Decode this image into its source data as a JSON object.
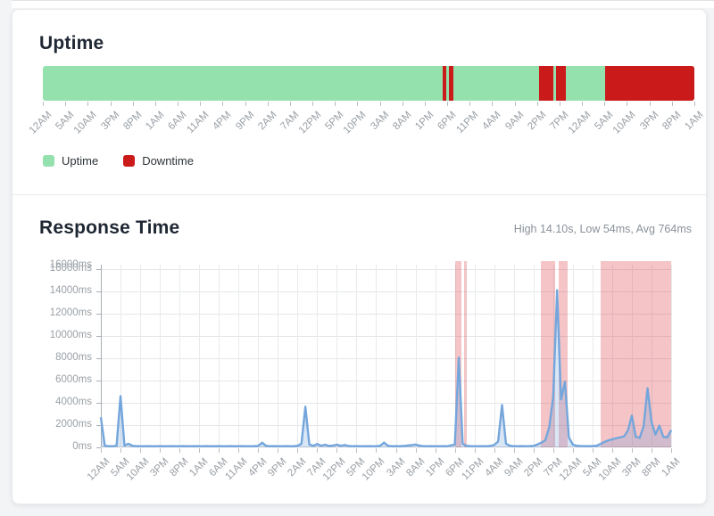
{
  "uptime": {
    "title": "Uptime",
    "legend": [
      {
        "label": "Uptime",
        "color": "#95e1ae"
      },
      {
        "label": "Downtime",
        "color": "#cb1a1a"
      }
    ]
  },
  "response": {
    "title": "Response Time",
    "stats": "High 14.10s, Low 54ms, Avg 764ms"
  },
  "x_labels": [
    "12AM",
    "5AM",
    "10AM",
    "3PM",
    "8PM",
    "1AM",
    "6AM",
    "11AM",
    "4PM",
    "9PM",
    "2AM",
    "7AM",
    "12PM",
    "5PM",
    "10PM",
    "3AM",
    "8AM",
    "1PM",
    "6PM",
    "11PM",
    "4AM",
    "9AM",
    "2PM",
    "7PM",
    "12AM",
    "5AM",
    "10AM",
    "3PM",
    "8PM",
    "1AM"
  ],
  "colors": {
    "up_green": "#95e1ae",
    "down_red": "#cb1a1a",
    "line_blue": "#74a6dc",
    "fill_blue": "rgba(118,167,220,0.28)",
    "band_red": "rgba(220,60,70,0.30)",
    "axis_text": "#9aa0a6",
    "page_bg": "#f3f4f6"
  },
  "chart_data": [
    {
      "type": "bar",
      "title": "Uptime",
      "legend": [
        "Uptime",
        "Downtime"
      ],
      "x_tick_labels": [
        "12AM",
        "5AM",
        "10AM",
        "3PM",
        "8PM",
        "1AM",
        "6AM",
        "11AM",
        "4PM",
        "9PM",
        "2AM",
        "7AM",
        "12PM",
        "5PM",
        "10PM",
        "3AM",
        "8AM",
        "1PM",
        "6PM",
        "11PM",
        "4AM",
        "9AM",
        "2PM",
        "7PM",
        "12AM",
        "5AM",
        "10AM",
        "3PM",
        "8PM",
        "1AM"
      ],
      "segments_pct": [
        {
          "status": "up",
          "from": 0,
          "to": 61.4
        },
        {
          "status": "down",
          "from": 61.4,
          "to": 61.9
        },
        {
          "status": "up",
          "from": 61.9,
          "to": 62.3
        },
        {
          "status": "down",
          "from": 62.3,
          "to": 63.0
        },
        {
          "status": "up",
          "from": 63.0,
          "to": 76.2
        },
        {
          "status": "down",
          "from": 76.2,
          "to": 78.4
        },
        {
          "status": "up",
          "from": 78.4,
          "to": 78.8
        },
        {
          "status": "down",
          "from": 78.8,
          "to": 80.3
        },
        {
          "status": "up",
          "from": 80.3,
          "to": 86.3
        },
        {
          "status": "down",
          "from": 86.3,
          "to": 100
        }
      ]
    },
    {
      "type": "area",
      "title": "Response Time",
      "high": "14.10s",
      "low": "54ms",
      "avg": "764ms",
      "x_unit": "hour",
      "x_tick_every_hours": 5,
      "x_tick_labels": [
        "12AM",
        "5AM",
        "10AM",
        "3PM",
        "8PM",
        "1AM",
        "6AM",
        "11AM",
        "4PM",
        "9PM",
        "2AM",
        "7AM",
        "12PM",
        "5PM",
        "10PM",
        "3AM",
        "8AM",
        "1PM",
        "6PM",
        "11PM",
        "4AM",
        "9AM",
        "2PM",
        "7PM",
        "12AM",
        "5AM",
        "10AM",
        "3PM",
        "8PM",
        "1AM"
      ],
      "ylim": [
        0,
        16000
      ],
      "y_ticks_ms": [
        0,
        2000,
        4000,
        6000,
        8000,
        10000,
        12000,
        14000,
        16000
      ],
      "y_unit": "ms",
      "y_axis_overlap_label": "16000ms",
      "values_ms": [
        2700,
        150,
        100,
        100,
        160,
        4600,
        180,
        320,
        150,
        110,
        100,
        100,
        110,
        100,
        100,
        110,
        100,
        100,
        110,
        100,
        100,
        110,
        100,
        100,
        110,
        100,
        100,
        110,
        100,
        100,
        110,
        100,
        100,
        110,
        100,
        100,
        110,
        100,
        100,
        110,
        130,
        420,
        140,
        100,
        110,
        100,
        100,
        110,
        100,
        100,
        140,
        320,
        3650,
        260,
        140,
        300,
        150,
        240,
        130,
        160,
        250,
        140,
        220,
        120,
        100,
        110,
        100,
        100,
        110,
        100,
        100,
        140,
        430,
        150,
        100,
        110,
        100,
        130,
        170,
        200,
        260,
        160,
        110,
        100,
        110,
        100,
        100,
        110,
        100,
        180,
        260,
        8050,
        320,
        140,
        110,
        100,
        100,
        110,
        100,
        130,
        220,
        520,
        3800,
        330,
        150,
        110,
        100,
        110,
        100,
        110,
        130,
        260,
        420,
        640,
        1800,
        4500,
        14100,
        4300,
        5900,
        900,
        250,
        140,
        120,
        110,
        110,
        120,
        140,
        300,
        480,
        620,
        720,
        820,
        900,
        980,
        1500,
        2850,
        950,
        850,
        1900,
        5300,
        2300,
        1150,
        1950,
        950,
        900,
        1550
      ],
      "downtime_bands_pct": [
        [
          62.2,
          63.3
        ],
        [
          63.7,
          64.2
        ],
        [
          77.2,
          79.7
        ],
        [
          80.3,
          81.8
        ],
        [
          87.6,
          100
        ]
      ]
    }
  ]
}
